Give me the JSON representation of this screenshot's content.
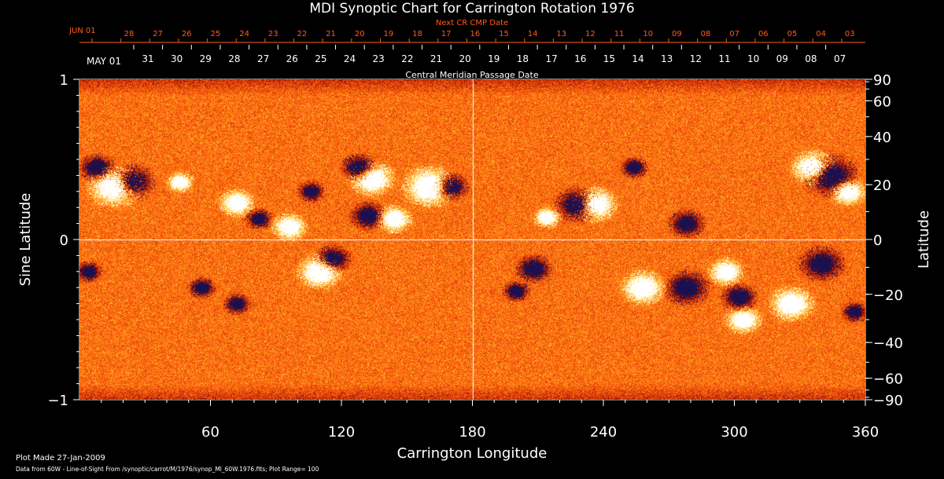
{
  "chart_data": {
    "type": "heatmap",
    "title": "MDI Synoptic Chart for Carrington Rotation 1976",
    "xlabel": "Carrington Longitude",
    "ylabel_left": "Sine Latitude",
    "ylabel_right": "Latitude",
    "xlim": [
      0,
      360
    ],
    "ylim": [
      -1,
      1
    ],
    "x_ticks": [
      60,
      120,
      180,
      240,
      300,
      360
    ],
    "y_ticks_left": [
      -1,
      0,
      1
    ],
    "y_ticks_right": [
      -90,
      -60,
      -40,
      -20,
      0,
      20,
      40,
      60,
      90
    ],
    "top_axis_label": "Next CR CMP Date",
    "top_axis_start_label": "JUN 01",
    "top_axis_ticks": [
      "28",
      "27",
      "26",
      "25",
      "24",
      "23",
      "22",
      "21",
      "20",
      "19",
      "18",
      "17",
      "16",
      "15",
      "14",
      "13",
      "12",
      "11",
      "10",
      "09",
      "08",
      "07",
      "06",
      "05",
      "04",
      "03"
    ],
    "mid_axis_label": "Central Meridian Passage Date",
    "mid_axis_start_label": "MAY 01",
    "mid_axis_ticks": [
      "31",
      "30",
      "29",
      "28",
      "27",
      "26",
      "25",
      "24",
      "23",
      "22",
      "21",
      "20",
      "19",
      "18",
      "17",
      "16",
      "15",
      "14",
      "13",
      "12",
      "11",
      "10",
      "09",
      "08",
      "07"
    ],
    "gridlines": {
      "longitude": 180,
      "sine_latitude": 0
    },
    "plot_range": 100,
    "colormap": [
      "#1a1050",
      "#7a0808",
      "#c8320a",
      "#ff5a0c",
      "#ff9a1a",
      "#ffe060",
      "#ffffff"
    ],
    "active_regions": [
      {
        "lon": 8,
        "sinlat": 0.45,
        "r": 4,
        "pol": -1
      },
      {
        "lon": 16,
        "sinlat": 0.33,
        "r": 6,
        "pol": 1
      },
      {
        "lon": 24,
        "sinlat": 0.36,
        "r": 5,
        "pol": -1
      },
      {
        "lon": 46,
        "sinlat": 0.36,
        "r": 3,
        "pol": 1
      },
      {
        "lon": 72,
        "sinlat": 0.23,
        "r": 4,
        "pol": 1
      },
      {
        "lon": 82,
        "sinlat": 0.13,
        "r": 3,
        "pol": -1
      },
      {
        "lon": 96,
        "sinlat": 0.08,
        "r": 4,
        "pol": 1
      },
      {
        "lon": 106,
        "sinlat": 0.3,
        "r": 3,
        "pol": -1
      },
      {
        "lon": 128,
        "sinlat": 0.45,
        "r": 4,
        "pol": -1
      },
      {
        "lon": 132,
        "sinlat": 0.15,
        "r": 4,
        "pol": -1
      },
      {
        "lon": 134,
        "sinlat": 0.38,
        "r": 5,
        "pol": 1
      },
      {
        "lon": 144,
        "sinlat": 0.13,
        "r": 4,
        "pol": 1
      },
      {
        "lon": 160,
        "sinlat": 0.33,
        "r": 6,
        "pol": 1
      },
      {
        "lon": 170,
        "sinlat": 0.33,
        "r": 4,
        "pol": -1
      },
      {
        "lon": 110,
        "sinlat": -0.2,
        "r": 5,
        "pol": 1
      },
      {
        "lon": 116,
        "sinlat": -0.12,
        "r": 4,
        "pol": -1
      },
      {
        "lon": 72,
        "sinlat": -0.4,
        "r": 3,
        "pol": -1
      },
      {
        "lon": 56,
        "sinlat": -0.3,
        "r": 3,
        "pol": -1
      },
      {
        "lon": 214,
        "sinlat": 0.14,
        "r": 3,
        "pol": 1
      },
      {
        "lon": 228,
        "sinlat": 0.22,
        "r": 5,
        "pol": -1
      },
      {
        "lon": 236,
        "sinlat": 0.22,
        "r": 5,
        "pol": 1
      },
      {
        "lon": 254,
        "sinlat": 0.45,
        "r": 3,
        "pol": -1
      },
      {
        "lon": 278,
        "sinlat": 0.1,
        "r": 4,
        "pol": -1
      },
      {
        "lon": 344,
        "sinlat": 0.4,
        "r": 6,
        "pol": -1
      },
      {
        "lon": 336,
        "sinlat": 0.45,
        "r": 5,
        "pol": 1
      },
      {
        "lon": 352,
        "sinlat": 0.3,
        "r": 4,
        "pol": 1
      },
      {
        "lon": 258,
        "sinlat": -0.3,
        "r": 5,
        "pol": 1
      },
      {
        "lon": 278,
        "sinlat": -0.3,
        "r": 5,
        "pol": -1
      },
      {
        "lon": 296,
        "sinlat": -0.2,
        "r": 4,
        "pol": 1
      },
      {
        "lon": 302,
        "sinlat": -0.36,
        "r": 4,
        "pol": -1
      },
      {
        "lon": 304,
        "sinlat": -0.5,
        "r": 4,
        "pol": 1
      },
      {
        "lon": 326,
        "sinlat": -0.4,
        "r": 5,
        "pol": 1
      },
      {
        "lon": 340,
        "sinlat": -0.15,
        "r": 5,
        "pol": -1
      },
      {
        "lon": 355,
        "sinlat": -0.45,
        "r": 3,
        "pol": -1
      },
      {
        "lon": 208,
        "sinlat": -0.18,
        "r": 4,
        "pol": -1
      },
      {
        "lon": 200,
        "sinlat": -0.32,
        "r": 3,
        "pol": -1
      },
      {
        "lon": 4,
        "sinlat": -0.2,
        "r": 3,
        "pol": -1
      }
    ]
  },
  "footer": {
    "plot_made": "Plot Made 27-Jan-2009",
    "data_info": "Data from 60W - Line-of-Sight From /synoptic/carrot/M/1976/synop_Ml_60W.1976.fits; Plot Range=  100"
  }
}
